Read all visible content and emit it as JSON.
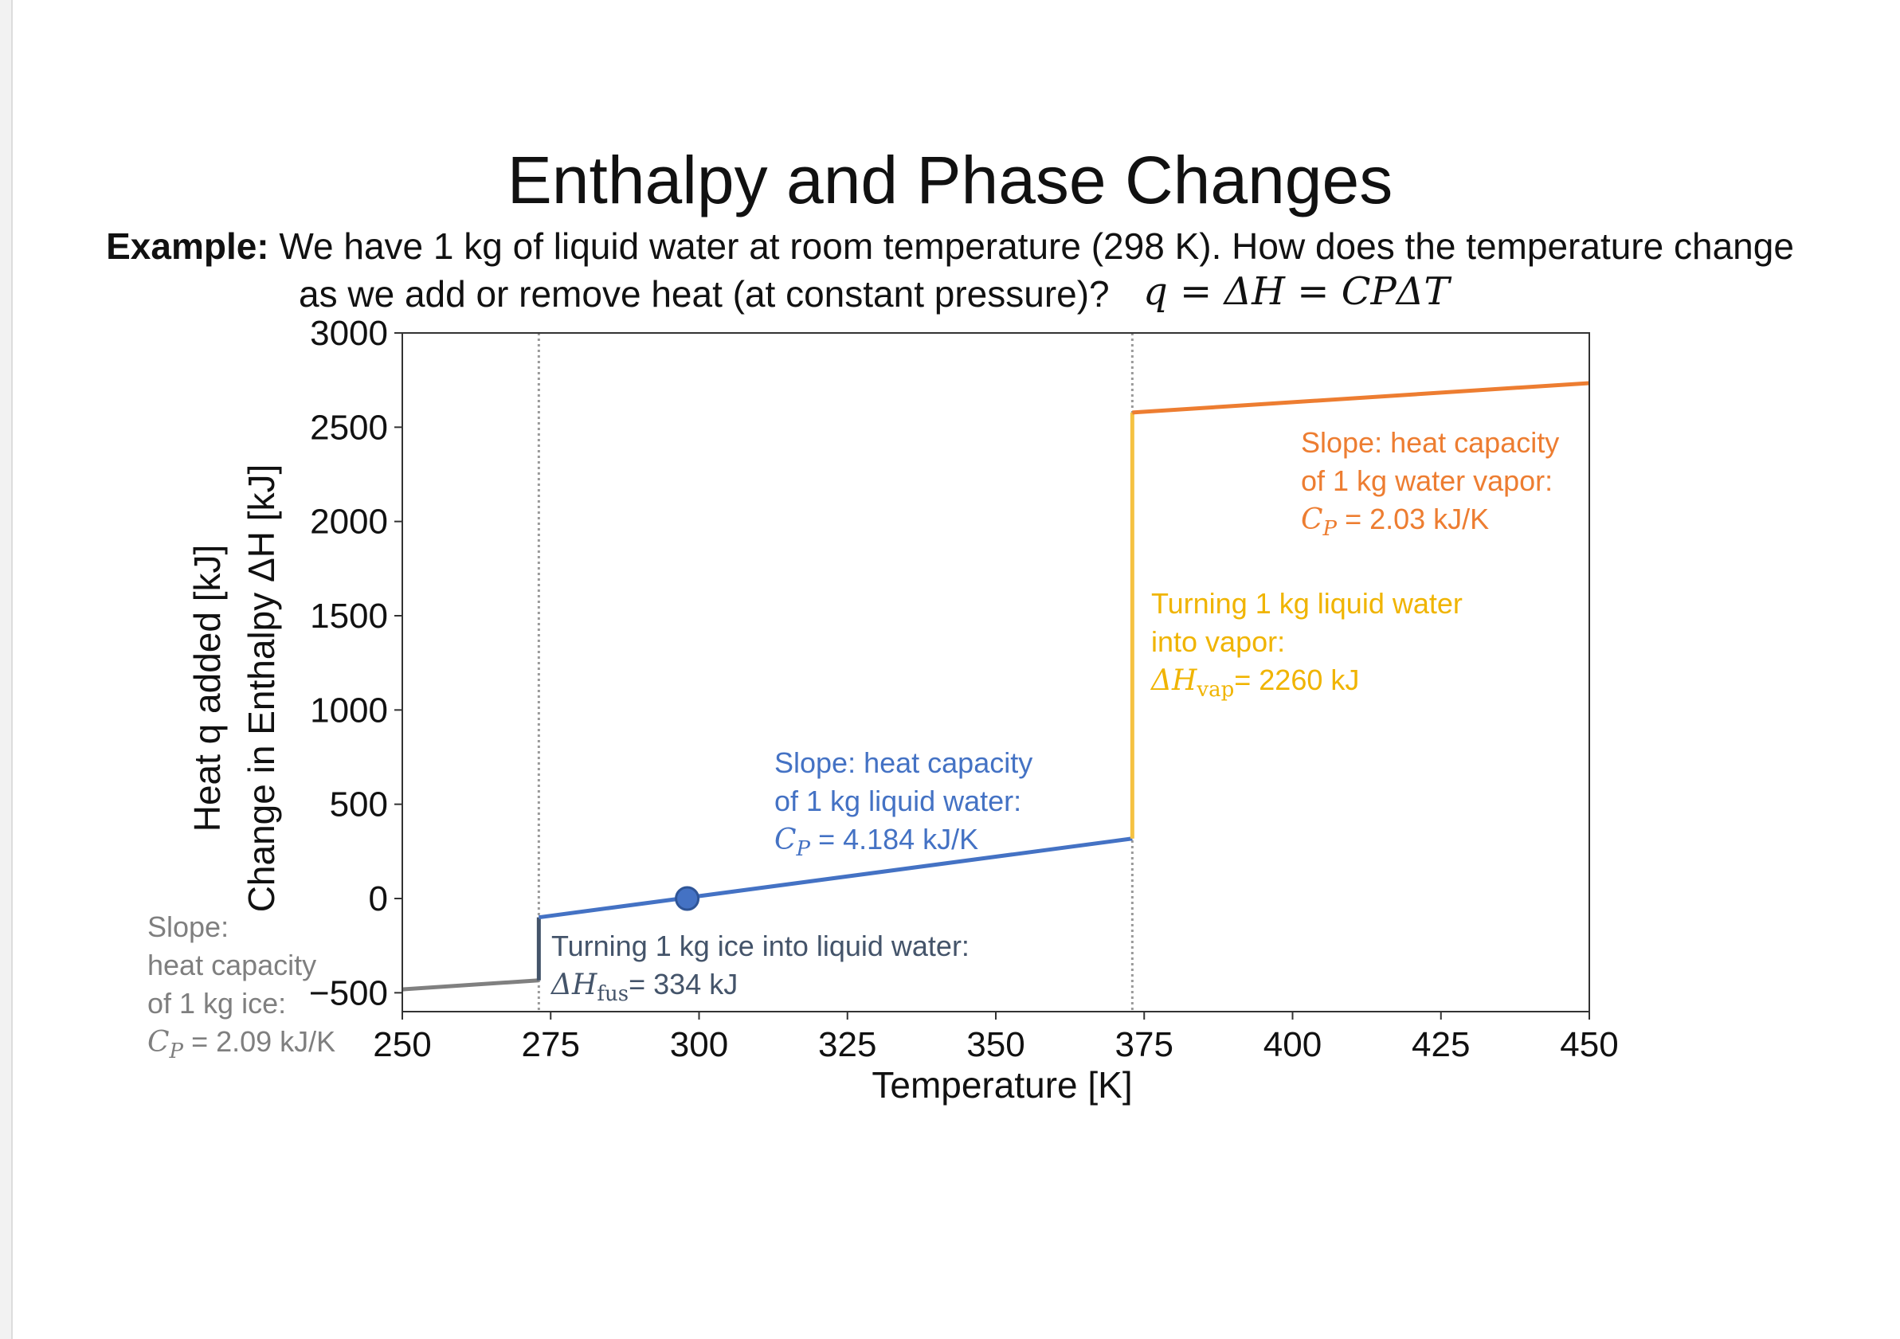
{
  "page": {
    "title": "Enthalpy and Phase Changes",
    "example_label": "Example:",
    "example_text": "We have 1 kg of liquid water at room temperature (298 K). How does the temperature change",
    "example_text_2": "as we add or remove heat (at constant pressure)?",
    "formula": "q = ΔH = CPΔT"
  },
  "chart_data": {
    "type": "line",
    "xlabel": "Temperature [K]",
    "ylabel_line1": "Heat q added [kJ]",
    "ylabel_line2": "Change in Enthalpy ΔH  [kJ]",
    "xlim": [
      250,
      450
    ],
    "ylim": [
      -600,
      3000
    ],
    "x_ticks": [
      250,
      275,
      300,
      325,
      350,
      375,
      400,
      425,
      450
    ],
    "y_ticks": [
      -500,
      0,
      500,
      1000,
      1500,
      2000,
      2500,
      3000
    ],
    "y_tick_labels": [
      "−500",
      "0",
      "500",
      "1000",
      "1500",
      "2000",
      "2500",
      "3000"
    ],
    "grid": false,
    "vertical_reference_lines": [
      273,
      373
    ],
    "series": [
      {
        "x": [
          250,
          273
        ],
        "y": [
          -482,
          -434
        ],
        "color": "#808080"
      },
      {
        "x": [
          273,
          273
        ],
        "y": [
          -434,
          -100
        ],
        "color": "#44546a"
      },
      {
        "x": [
          273,
          373
        ],
        "y": [
          -100,
          318
        ],
        "color": "#4472c4"
      },
      {
        "x": [
          373,
          373
        ],
        "y": [
          318,
          2578
        ],
        "color": "#f5c242"
      },
      {
        "x": [
          373,
          450
        ],
        "y": [
          2578,
          2734
        ],
        "color": "#ed7d31"
      }
    ],
    "marker": {
      "x": 298,
      "y": 0,
      "color": "#4472c4"
    },
    "annotations": {
      "ice": {
        "line1": "Slope:",
        "line2": "heat capacity",
        "line3": "of 1 kg ice:",
        "cp_symbol": "C",
        "cp_sub": "P",
        "cp_value": "= 2.09 kJ/K"
      },
      "fusion": {
        "line1": "Turning 1 kg ice into liquid water:",
        "dh_symbol": "ΔH",
        "dh_sub": "fus",
        "dh_value": "= 334 kJ"
      },
      "liquid": {
        "line1": "Slope: heat capacity",
        "line2": "of 1 kg liquid water:",
        "cp_symbol": "C",
        "cp_sub": "P",
        "cp_value": "= 4.184 kJ/K"
      },
      "vaporization": {
        "line1": "Turning 1 kg liquid water",
        "line2": "into vapor:",
        "dh_symbol": "ΔH",
        "dh_sub": "vap",
        "dh_value": "= 2260 kJ"
      },
      "vapor": {
        "line1": "Slope: heat capacity",
        "line2": "of 1 kg water vapor:",
        "cp_symbol": "C",
        "cp_sub": "P",
        "cp_value": "= 2.03 kJ/K"
      }
    }
  }
}
